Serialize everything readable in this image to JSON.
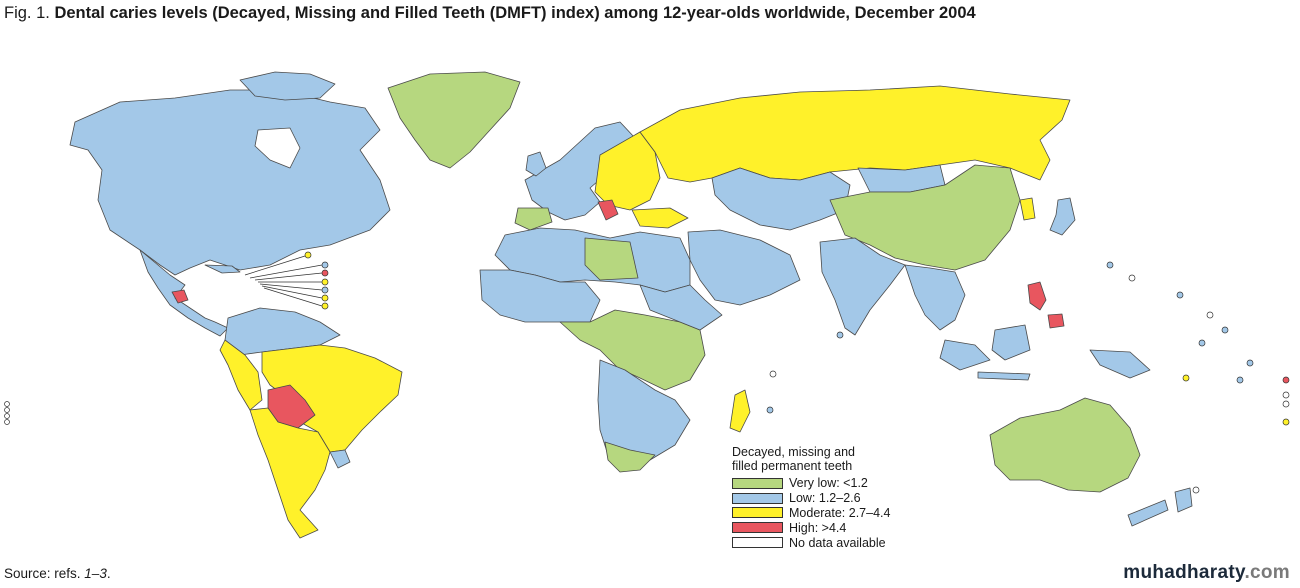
{
  "title": {
    "fig_label": "Fig. 1.",
    "text": "Dental caries levels (Decayed, Missing and Filled Teeth (DMFT) index) among 12-year-olds worldwide, December 2004"
  },
  "legend": {
    "heading_line1": "Decayed, missing and",
    "heading_line2": "filled permanent teeth",
    "items": [
      {
        "label": "Very low: <1.2",
        "color": "#b6d77f"
      },
      {
        "label": "Low: 1.2–2.6",
        "color": "#a3c8e8"
      },
      {
        "label": "Moderate: 2.7–4.4",
        "color": "#fff12a"
      },
      {
        "label": "High: >4.4",
        "color": "#e8565f"
      },
      {
        "label": "No data available",
        "color": "#ffffff"
      }
    ]
  },
  "source": {
    "prefix": "Source: refs. ",
    "refs": "1–3",
    "suffix": "."
  },
  "watermark": {
    "main": "muhadharaty",
    "suffix": ".com"
  },
  "map_regions": [
    {
      "name": "greenland",
      "category": "very-low"
    },
    {
      "name": "north-america",
      "category": "low"
    },
    {
      "name": "central-america",
      "category": "low"
    },
    {
      "name": "guatemala",
      "category": "high"
    },
    {
      "name": "south-america-north",
      "category": "low"
    },
    {
      "name": "brazil",
      "category": "moderate"
    },
    {
      "name": "andean-countries",
      "category": "moderate"
    },
    {
      "name": "bolivia",
      "category": "high"
    },
    {
      "name": "southern-cone",
      "category": "moderate"
    },
    {
      "name": "uruguay",
      "category": "low"
    },
    {
      "name": "western-europe",
      "category": "low"
    },
    {
      "name": "eastern-europe",
      "category": "moderate"
    },
    {
      "name": "balkans",
      "category": "high"
    },
    {
      "name": "russia",
      "category": "moderate"
    },
    {
      "name": "north-africa",
      "category": "low"
    },
    {
      "name": "west-africa",
      "category": "low"
    },
    {
      "name": "central-africa",
      "category": "very-low"
    },
    {
      "name": "southern-africa",
      "category": "low"
    },
    {
      "name": "madagascar",
      "category": "moderate"
    },
    {
      "name": "middle-east",
      "category": "low"
    },
    {
      "name": "central-asia",
      "category": "low"
    },
    {
      "name": "china",
      "category": "very-low"
    },
    {
      "name": "india",
      "category": "low"
    },
    {
      "name": "southeast-asia",
      "category": "low"
    },
    {
      "name": "philippines",
      "category": "high"
    },
    {
      "name": "indonesia",
      "category": "low"
    },
    {
      "name": "japan",
      "category": "low"
    },
    {
      "name": "australia",
      "category": "very-low"
    },
    {
      "name": "new-zealand",
      "category": "low"
    }
  ]
}
